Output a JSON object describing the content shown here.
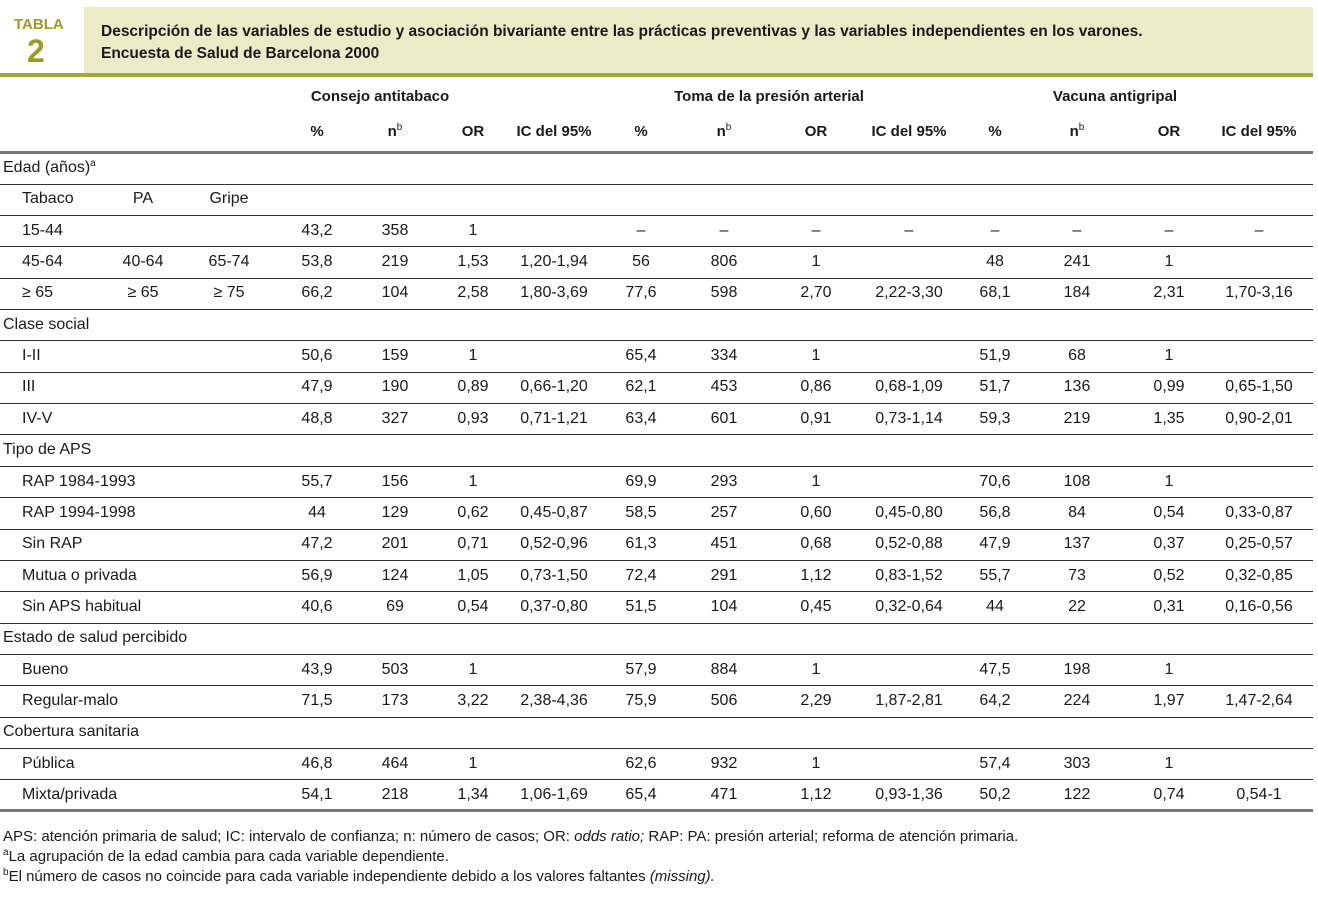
{
  "label": {
    "word": "TABLA",
    "number": "2"
  },
  "title": [
    "Descripción de las variables de estudio y asociación bivariante entre las prácticas preventivas y las variables independientes en los varones.",
    "Encuesta de Salud de Barcelona 2000"
  ],
  "table": {
    "group_headers": [
      "Consejo antitabaco",
      "Toma de la presión arterial",
      "Vacuna antigripal"
    ],
    "column_headers": [
      "%",
      {
        "text": "n",
        "sup": "b"
      },
      "OR",
      "IC del 95%",
      "%",
      {
        "text": "n",
        "sup": "b"
      },
      "OR",
      "IC del 95%",
      "%",
      {
        "text": "n",
        "sup": "b"
      },
      "OR",
      "IC del 95%"
    ],
    "sections": [
      {
        "label": "Edad (años)",
        "sup": "a",
        "rows": [
          {
            "labels": [
              "Tabaco",
              "PA",
              "Gripe"
            ]
          },
          {
            "labels": [
              "15-44"
            ],
            "cells": [
              "43,2",
              "358",
              "1",
              null,
              "–",
              "–",
              "–",
              "–",
              "–",
              "–",
              "–",
              "–"
            ]
          },
          {
            "labels": [
              "45-64",
              "40-64",
              "65-74"
            ],
            "cells": [
              "53,8",
              "219",
              "1,53",
              "1,20-1,94",
              "56",
              "806",
              "1",
              null,
              "48",
              "241",
              "1",
              null
            ]
          },
          {
            "labels": [
              "≥ 65",
              "≥ 65",
              "≥ 75"
            ],
            "cells": [
              "66,2",
              "104",
              "2,58",
              "1,80-3,69",
              "77,6",
              "598",
              "2,70",
              "2,22-3,30",
              "68,1",
              "184",
              "2,31",
              "1,70-3,16"
            ]
          }
        ]
      },
      {
        "label": "Clase social",
        "rows": [
          {
            "labels": [
              "I-II"
            ],
            "cells": [
              "50,6",
              "159",
              "1",
              null,
              "65,4",
              "334",
              "1",
              null,
              "51,9",
              "68",
              "1",
              null
            ]
          },
          {
            "labels": [
              "III"
            ],
            "cells": [
              "47,9",
              "190",
              "0,89",
              "0,66-1,20",
              "62,1",
              "453",
              "0,86",
              "0,68-1,09",
              "51,7",
              "136",
              "0,99",
              "0,65-1,50"
            ]
          },
          {
            "labels": [
              "IV-V"
            ],
            "cells": [
              "48,8",
              "327",
              "0,93",
              "0,71-1,21",
              "63,4",
              "601",
              "0,91",
              "0,73-1,14",
              "59,3",
              "219",
              "1,35",
              "0,90-2,01"
            ]
          }
        ]
      },
      {
        "label": "Tipo de APS",
        "rows": [
          {
            "labels": [
              "RAP 1984-1993"
            ],
            "cells": [
              "55,7",
              "156",
              "1",
              null,
              "69,9",
              "293",
              "1",
              null,
              "70,6",
              "108",
              "1",
              null
            ]
          },
          {
            "labels": [
              "RAP 1994-1998"
            ],
            "cells": [
              "44",
              "129",
              "0,62",
              "0,45-0,87",
              "58,5",
              "257",
              "0,60",
              "0,45-0,80",
              "56,8",
              "84",
              "0,54",
              "0,33-0,87"
            ]
          },
          {
            "labels": [
              "Sin RAP"
            ],
            "cells": [
              "47,2",
              "201",
              "0,71",
              "0,52-0,96",
              "61,3",
              "451",
              "0,68",
              "0,52-0,88",
              "47,9",
              "137",
              "0,37",
              "0,25-0,57"
            ]
          },
          {
            "labels": [
              "Mutua o privada"
            ],
            "cells": [
              "56,9",
              "124",
              "1,05",
              "0,73-1,50",
              "72,4",
              "291",
              "1,12",
              "0,83-1,52",
              "55,7",
              "73",
              "0,52",
              "0,32-0,85"
            ]
          },
          {
            "labels": [
              "Sin APS habitual"
            ],
            "cells": [
              "40,6",
              "69",
              "0,54",
              "0,37-0,80",
              "51,5",
              "104",
              "0,45",
              "0,32-0,64",
              "44",
              "22",
              "0,31",
              "0,16-0,56"
            ]
          }
        ]
      },
      {
        "label": "Estado de salud percibido",
        "rows": [
          {
            "labels": [
              "Bueno"
            ],
            "cells": [
              "43,9",
              "503",
              "1",
              null,
              "57,9",
              "884",
              "1",
              null,
              "47,5",
              "198",
              "1",
              null
            ]
          },
          {
            "labels": [
              "Regular-malo"
            ],
            "cells": [
              "71,5",
              "173",
              "3,22",
              "2,38-4,36",
              "75,9",
              "506",
              "2,29",
              "1,87-2,81",
              "64,2",
              "224",
              "1,97",
              "1,47-2,64"
            ]
          }
        ]
      },
      {
        "label": "Cobertura sanitaria",
        "rows": [
          {
            "labels": [
              "Pública"
            ],
            "cells": [
              "46,8",
              "464",
              "1",
              null,
              "62,6",
              "932",
              "1",
              null,
              "57,4",
              "303",
              "1",
              null
            ]
          },
          {
            "labels": [
              "Mixta/privada"
            ],
            "cells": [
              "54,1",
              "218",
              "1,34",
              "1,06-1,69",
              "65,4",
              "471",
              "1,12",
              "0,93-1,36",
              "50,2",
              "122",
              "0,74",
              "0,54-1"
            ]
          }
        ]
      }
    ]
  },
  "footnotes": [
    {
      "segments": [
        {
          "text": "APS: atención primaria de salud; IC: intervalo de confianza; n: número de casos; OR: "
        },
        {
          "text": "odds ratio;",
          "italic": true
        },
        {
          "text": " RAP: PA: presión arterial; reforma de atención primaria."
        }
      ]
    },
    {
      "sup": "a",
      "segments": [
        {
          "text": "La agrupación de la edad cambia para cada variable dependiente."
        }
      ]
    },
    {
      "sup": "b",
      "segments": [
        {
          "text": "El número de casos no coincide para cada variable independiente debido a los valores faltantes "
        },
        {
          "text": "(missing).",
          "italic": true
        }
      ]
    }
  ]
}
